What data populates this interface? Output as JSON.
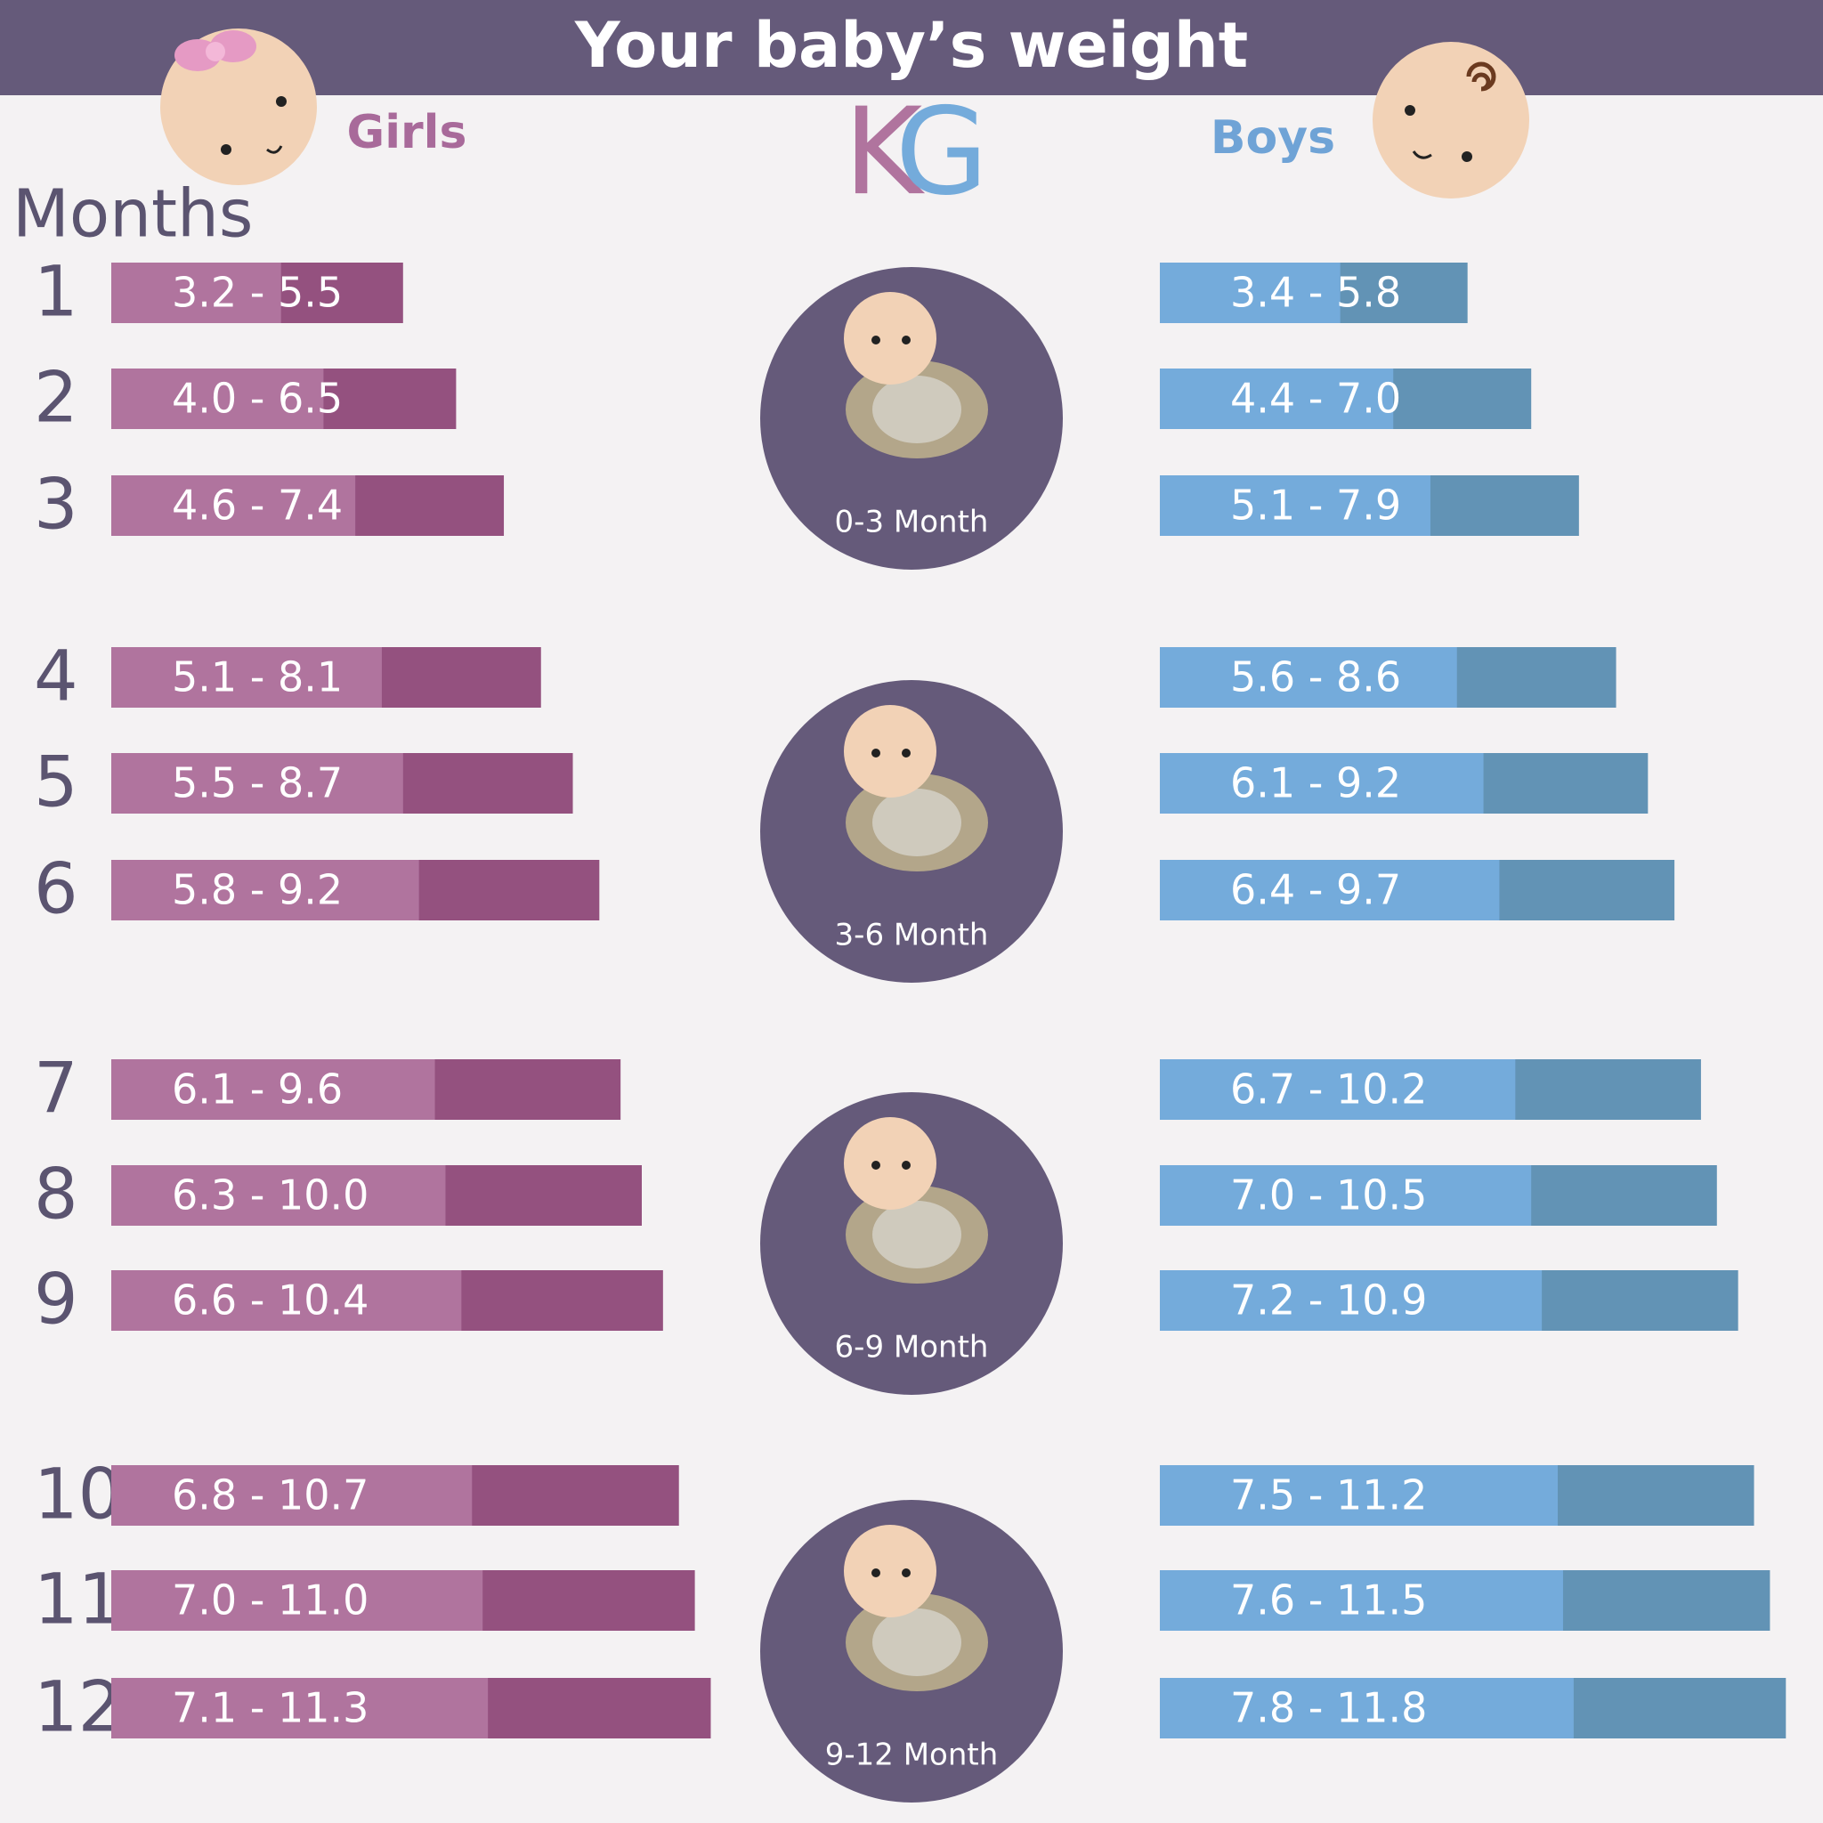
{
  "header": {
    "title": "Your baby’s weight",
    "girls": "Girls",
    "boys": "Boys",
    "unit_parts": [
      "K",
      "G"
    ],
    "months": "Months"
  },
  "rows": [
    {
      "month": "1",
      "girls": {
        "range": "3.2 - 5.5",
        "min": 3.2,
        "max": 5.5
      },
      "boys": {
        "range": "3.4 - 5.8",
        "min": 3.4,
        "max": 5.8
      }
    },
    {
      "month": "2",
      "girls": {
        "range": "4.0 - 6.5",
        "min": 4.0,
        "max": 6.5
      },
      "boys": {
        "range": "4.4 - 7.0",
        "min": 4.4,
        "max": 7.0
      }
    },
    {
      "month": "3",
      "girls": {
        "range": "4.6 - 7.4",
        "min": 4.6,
        "max": 7.4
      },
      "boys": {
        "range": "5.1 - 7.9",
        "min": 5.1,
        "max": 7.9
      }
    },
    {
      "month": "4",
      "girls": {
        "range": "5.1 - 8.1",
        "min": 5.1,
        "max": 8.1
      },
      "boys": {
        "range": "5.6 - 8.6",
        "min": 5.6,
        "max": 8.6
      }
    },
    {
      "month": "5",
      "girls": {
        "range": "5.5 - 8.7",
        "min": 5.5,
        "max": 8.7
      },
      "boys": {
        "range": "6.1 - 9.2",
        "min": 6.1,
        "max": 9.2
      }
    },
    {
      "month": "6",
      "girls": {
        "range": "5.8 - 9.2",
        "min": 5.8,
        "max": 9.2
      },
      "boys": {
        "range": "6.4 - 9.7",
        "min": 6.4,
        "max": 9.7
      }
    },
    {
      "month": "7",
      "girls": {
        "range": "6.1 - 9.6",
        "min": 6.1,
        "max": 9.6
      },
      "boys": {
        "range": "6.7 - 10.2",
        "min": 6.7,
        "max": 10.2
      }
    },
    {
      "month": "8",
      "girls": {
        "range": "6.3 - 10.0",
        "min": 6.3,
        "max": 10.0
      },
      "boys": {
        "range": "7.0 - 10.5",
        "min": 7.0,
        "max": 10.5
      }
    },
    {
      "month": "9",
      "girls": {
        "range": "6.6 - 10.4",
        "min": 6.6,
        "max": 10.4
      },
      "boys": {
        "range": "7.2 - 10.9",
        "min": 7.2,
        "max": 10.9
      }
    },
    {
      "month": "10",
      "girls": {
        "range": "6.8 - 10.7",
        "min": 6.8,
        "max": 10.7
      },
      "boys": {
        "range": "7.5 - 11.2",
        "min": 7.5,
        "max": 11.2
      }
    },
    {
      "month": "11",
      "girls": {
        "range": "7.0 - 11.0",
        "min": 7.0,
        "max": 11.0
      },
      "boys": {
        "range": "7.6 - 11.5",
        "min": 7.6,
        "max": 11.5
      }
    },
    {
      "month": "12",
      "girls": {
        "range": "7.1 - 11.3",
        "min": 7.1,
        "max": 11.3
      },
      "boys": {
        "range": "7.8 - 11.8",
        "min": 7.8,
        "max": 11.8
      }
    }
  ],
  "stages": [
    "0-3 Month",
    "3-6 Month",
    "6-9 Month",
    "9-12 Month"
  ]
}
